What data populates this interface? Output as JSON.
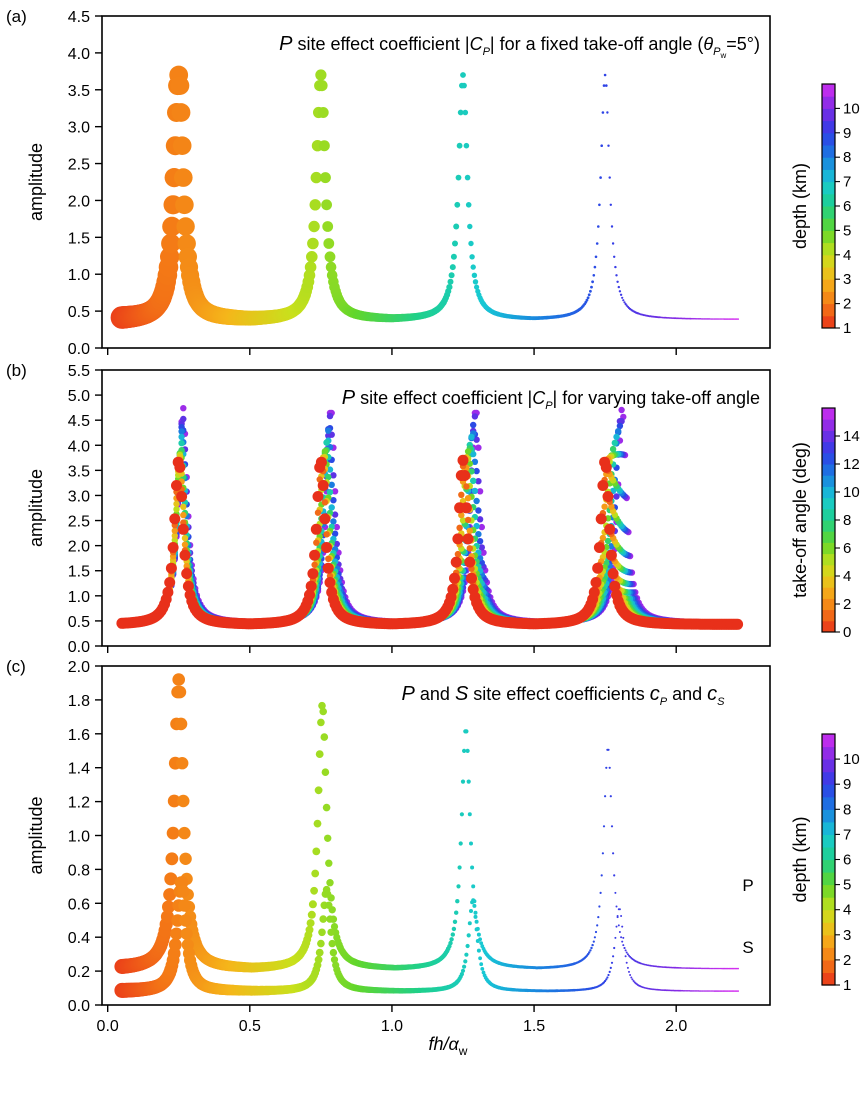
{
  "figure": {
    "xlabel": "fh/α",
    "xlabel_sub": "w",
    "x_ticks": [
      0.0,
      0.5,
      1.0,
      1.5,
      2.0
    ],
    "x_tick_labels": [
      "0.0",
      "0.5",
      "1.0",
      "1.5",
      "2.0"
    ],
    "xlim": [
      -0.02,
      2.33
    ]
  },
  "chart_data": [
    {
      "panel_label": "(a)",
      "type": "scatter",
      "title_parts": {
        "P": "P",
        "mid": " site effect coefficient |",
        "C": "C",
        "Csub": "P",
        "end": "| for a fixed take-off angle (",
        "theta": "θ",
        "thsub": "P",
        "thsub2": "w",
        "eq": "=5°)"
      },
      "ylabel": "amplitude",
      "ylim": [
        0,
        4.5
      ],
      "y_ticks": [
        "0.0",
        "0.5",
        "1.0",
        "1.5",
        "2.0",
        "2.5",
        "3.0",
        "3.5",
        "4.0",
        "4.5"
      ],
      "colorbar": {
        "label": "depth (km)",
        "min": 1,
        "max": 11,
        "tick_labels": [
          "1",
          "2",
          "3",
          "4",
          "5",
          "6",
          "7",
          "8",
          "9",
          "10"
        ]
      },
      "series": [
        {
          "peaks": [
            0.25,
            0.75,
            1.25,
            1.75
          ],
          "peak_value": 3.7,
          "baseline": 0.38,
          "x_range": [
            0.05,
            2.22
          ]
        }
      ]
    },
    {
      "panel_label": "(b)",
      "type": "scatter",
      "title_parts": {
        "P": "P",
        "mid": " site effect coefficient |",
        "C": "C",
        "Csub": "P",
        "end": "| for varying take-off angle"
      },
      "ylabel": "amplitude",
      "ylim": [
        0,
        5.5
      ],
      "y_ticks": [
        "0.0",
        "0.5",
        "1.0",
        "1.5",
        "2.0",
        "2.5",
        "3.0",
        "3.5",
        "4.0",
        "4.5",
        "5.0",
        "5.5"
      ],
      "colorbar": {
        "label": "take-off angle (deg)",
        "min": 0,
        "max": 16,
        "tick_labels": [
          "0",
          "2",
          "4",
          "6",
          "8",
          "10",
          "12",
          "14"
        ]
      },
      "series": [
        {
          "name": "0 deg",
          "peaks": [
            0.25,
            0.75,
            1.25,
            1.75
          ],
          "peak_value": 3.7,
          "baseline": 0.42
        },
        {
          "name": "15 deg",
          "peaks": [
            0.265,
            0.785,
            1.295,
            1.81
          ],
          "peak_value": 4.75,
          "baseline": 0.45
        }
      ]
    },
    {
      "panel_label": "(c)",
      "type": "scatter",
      "title_parts": {
        "P": "P",
        "and": " and ",
        "S": "S",
        "mid": " site effect coefficients ",
        "cP": "c",
        "cPsub": "P",
        "and2": " and ",
        "cS": "c",
        "cSsub": "S"
      },
      "ylabel": "amplitude",
      "ylim": [
        0,
        2.0
      ],
      "y_ticks": [
        "0.0",
        "0.2",
        "0.4",
        "0.6",
        "0.8",
        "1.0",
        "1.2",
        "1.4",
        "1.6",
        "1.8",
        "2.0"
      ],
      "colorbar": {
        "label": "depth (km)",
        "min": 1,
        "max": 11,
        "tick_labels": [
          "1",
          "2",
          "3",
          "4",
          "5",
          "6",
          "7",
          "8",
          "9",
          "10"
        ]
      },
      "series": [
        {
          "name": "P",
          "peaks": [
            0.25,
            0.755,
            1.26,
            1.76
          ],
          "peak_values": [
            1.92,
            1.77,
            1.63,
            1.52
          ],
          "baseline": 0.21
        },
        {
          "name": "S",
          "peaks": [
            0.26,
            0.77,
            1.285,
            1.8
          ],
          "peak_values": [
            0.73,
            0.68,
            0.62,
            0.57
          ],
          "baseline": 0.08
        }
      ]
    }
  ]
}
